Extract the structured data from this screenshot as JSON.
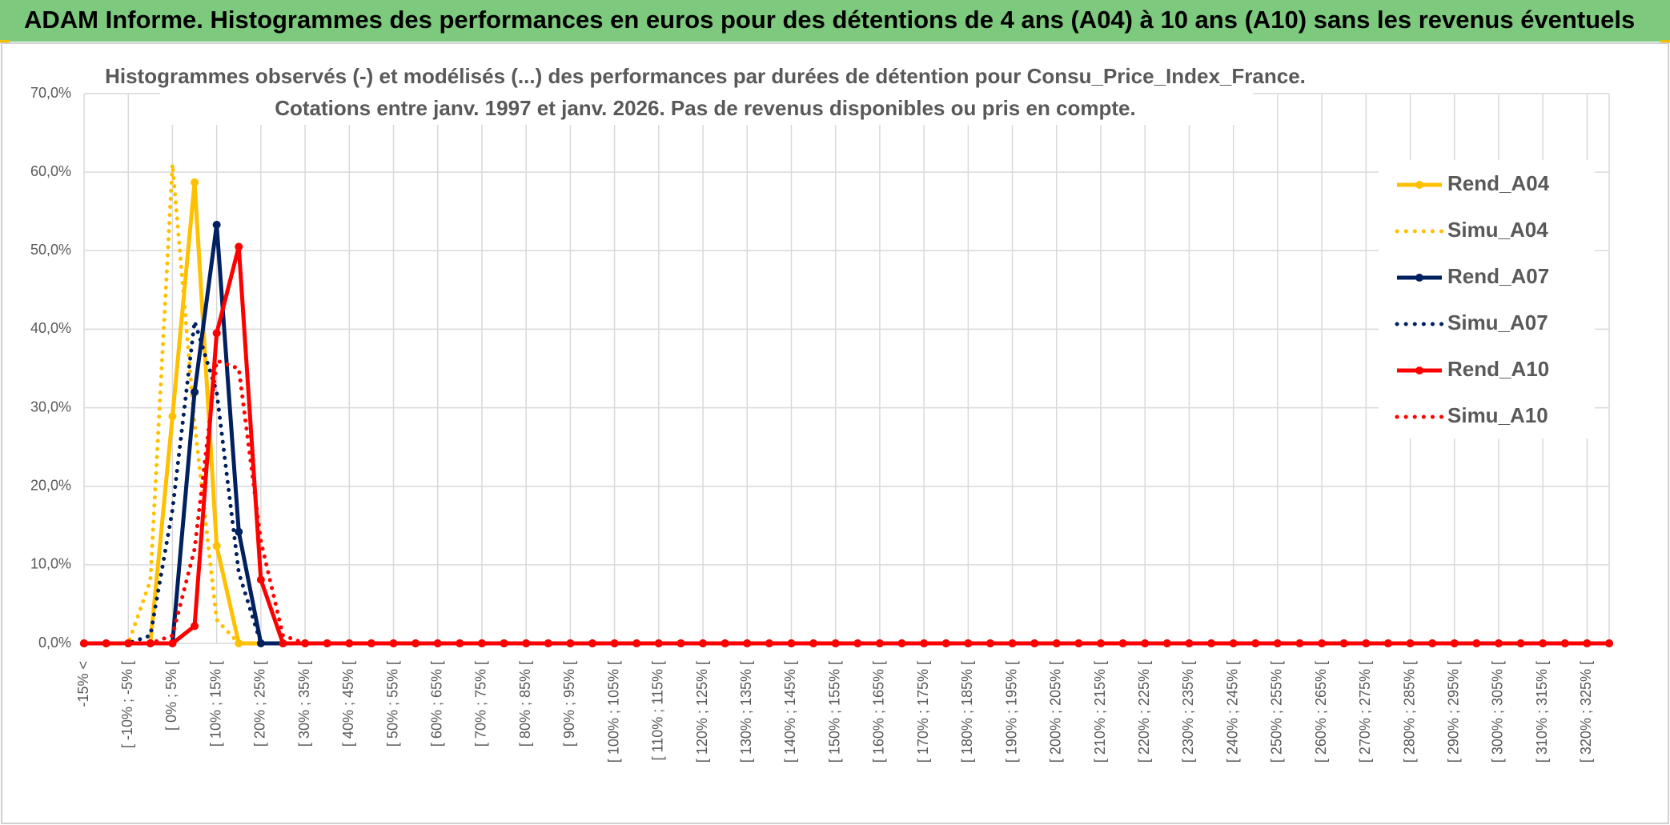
{
  "header": "ADAM Informe. Histogrammes des performances en euros pour des détentions de 4 ans (A04) à 10 ans (A10) sans les revenus éventuels",
  "chart_data": {
    "type": "line",
    "title": "Histogrammes observés (-) et modélisés (...) des performances par durées de détention pour Consu_Price_Index_France.",
    "subtitle": "Cotations entre janv. 1997 et janv. 2026. Pas de revenus disponibles ou pris en compte.",
    "categories": [
      "-15% <",
      null,
      "[ -10% ; -5% [",
      null,
      "[ 0% ; 5% [",
      null,
      "[ 10% ; 15% [",
      null,
      "[ 20% ; 25% [",
      null,
      "[ 30% ; 35% [",
      null,
      "[ 40% ; 45% [",
      null,
      "[ 50% ; 55% [",
      null,
      "[ 60% ; 65% [",
      null,
      "[ 70% ; 75% [",
      null,
      "[ 80% ; 85% [",
      null,
      "[ 90% ; 95% [",
      null,
      "[ 100% ; 105% [",
      null,
      "[ 110% ; 115% [",
      null,
      "[ 120% ; 125% [",
      null,
      "[ 130% ; 135% [",
      null,
      "[ 140% ; 145% [",
      null,
      "[ 150% ; 155% [",
      null,
      "[ 160% ; 165% [",
      null,
      "[ 170% ; 175% [",
      null,
      "[ 180% ; 185% [",
      null,
      "[ 190% ; 195% [",
      null,
      "[ 200% ; 205% [",
      null,
      "[ 210% ; 215% [",
      null,
      "[ 220% ; 225% [",
      null,
      "[ 230% ; 235% [",
      null,
      "[ 240% ; 245% [",
      null,
      "[ 250% ; 255% [",
      null,
      "[ 260% ; 265% [",
      null,
      "[ 270% ; 275% [",
      null,
      "[ 280% ; 285% [",
      null,
      "[ 290% ; 295% [",
      null,
      "[ 300% ; 305% [",
      null,
      "[ 310% ; 315% [",
      null,
      "[ 320% ; 325% [",
      null
    ],
    "series": [
      {
        "name": "Rend_A04",
        "color": "#ffc000",
        "style": "solid",
        "marker": true,
        "values": [
          0,
          0,
          0,
          0,
          28.9,
          58.7,
          12.4,
          0,
          0,
          0,
          0,
          0,
          0,
          0,
          0,
          0,
          0,
          0,
          0,
          0,
          0,
          0,
          0,
          0,
          0,
          0,
          0,
          0,
          0,
          0,
          0,
          0,
          0,
          0,
          0,
          0,
          0,
          0,
          0,
          0,
          0,
          0,
          0,
          0,
          0,
          0,
          0,
          0,
          0,
          0,
          0,
          0,
          0,
          0,
          0,
          0,
          0,
          0,
          0,
          0,
          0,
          0,
          0,
          0,
          0,
          0,
          0,
          0,
          0,
          0
        ]
      },
      {
        "name": "Simu_A04",
        "color": "#ffc000",
        "style": "dotted",
        "marker": false,
        "values": [
          0,
          0,
          0,
          8,
          61,
          28,
          3,
          0,
          0,
          0,
          0,
          0,
          0,
          0,
          0,
          0,
          0,
          0,
          0,
          0,
          0,
          0,
          0,
          0,
          0,
          0,
          0,
          0,
          0,
          0,
          0,
          0,
          0,
          0,
          0,
          0,
          0,
          0,
          0,
          0,
          0,
          0,
          0,
          0,
          0,
          0,
          0,
          0,
          0,
          0,
          0,
          0,
          0,
          0,
          0,
          0,
          0,
          0,
          0,
          0,
          0,
          0,
          0,
          0,
          0,
          0,
          0,
          0,
          0,
          0
        ]
      },
      {
        "name": "Rend_A07",
        "color": "#002060",
        "style": "solid",
        "marker": true,
        "values": [
          0,
          0,
          0,
          0,
          0,
          32,
          53.3,
          14.2,
          0,
          0,
          0,
          0,
          0,
          0,
          0,
          0,
          0,
          0,
          0,
          0,
          0,
          0,
          0,
          0,
          0,
          0,
          0,
          0,
          0,
          0,
          0,
          0,
          0,
          0,
          0,
          0,
          0,
          0,
          0,
          0,
          0,
          0,
          0,
          0,
          0,
          0,
          0,
          0,
          0,
          0,
          0,
          0,
          0,
          0,
          0,
          0,
          0,
          0,
          0,
          0,
          0,
          0,
          0,
          0,
          0,
          0,
          0,
          0,
          0,
          0
        ]
      },
      {
        "name": "Simu_A07",
        "color": "#002060",
        "style": "dotted",
        "marker": false,
        "values": [
          0,
          0,
          0,
          1,
          17,
          41,
          32,
          9,
          0,
          0,
          0,
          0,
          0,
          0,
          0,
          0,
          0,
          0,
          0,
          0,
          0,
          0,
          0,
          0,
          0,
          0,
          0,
          0,
          0,
          0,
          0,
          0,
          0,
          0,
          0,
          0,
          0,
          0,
          0,
          0,
          0,
          0,
          0,
          0,
          0,
          0,
          0,
          0,
          0,
          0,
          0,
          0,
          0,
          0,
          0,
          0,
          0,
          0,
          0,
          0,
          0,
          0,
          0,
          0,
          0,
          0,
          0,
          0,
          0,
          0
        ]
      },
      {
        "name": "Rend_A10",
        "color": "#ff0000",
        "style": "solid",
        "marker": true,
        "values": [
          0,
          0,
          0,
          0,
          0,
          2.2,
          39.5,
          50.5,
          8.1,
          0,
          0,
          0,
          0,
          0,
          0,
          0,
          0,
          0,
          0,
          0,
          0,
          0,
          0,
          0,
          0,
          0,
          0,
          0,
          0,
          0,
          0,
          0,
          0,
          0,
          0,
          0,
          0,
          0,
          0,
          0,
          0,
          0,
          0,
          0,
          0,
          0,
          0,
          0,
          0,
          0,
          0,
          0,
          0,
          0,
          0,
          0,
          0,
          0,
          0,
          0,
          0,
          0,
          0,
          0,
          0,
          0,
          0,
          0,
          0,
          0
        ]
      },
      {
        "name": "Simu_A10",
        "color": "#ff0000",
        "style": "dotted",
        "marker": false,
        "values": [
          0,
          0,
          0,
          0,
          1,
          12,
          36,
          35,
          13,
          1,
          0,
          0,
          0,
          0,
          0,
          0,
          0,
          0,
          0,
          0,
          0,
          0,
          0,
          0,
          0,
          0,
          0,
          0,
          0,
          0,
          0,
          0,
          0,
          0,
          0,
          0,
          0,
          0,
          0,
          0,
          0,
          0,
          0,
          0,
          0,
          0,
          0,
          0,
          0,
          0,
          0,
          0,
          0,
          0,
          0,
          0,
          0,
          0,
          0,
          0,
          0,
          0,
          0,
          0,
          0,
          0,
          0,
          0,
          0,
          0
        ]
      }
    ],
    "ylim": [
      0,
      70
    ],
    "yticks": [
      {
        "value": 0,
        "label": "0,0%"
      },
      {
        "value": 10,
        "label": "10,0%"
      },
      {
        "value": 20,
        "label": "20,0%"
      },
      {
        "value": 30,
        "label": "30,0%"
      },
      {
        "value": 40,
        "label": "40,0%"
      },
      {
        "value": 50,
        "label": "50,0%"
      },
      {
        "value": 60,
        "label": "60,0%"
      },
      {
        "value": 70,
        "label": "70,0%"
      }
    ],
    "grid": true,
    "legend": "right"
  }
}
